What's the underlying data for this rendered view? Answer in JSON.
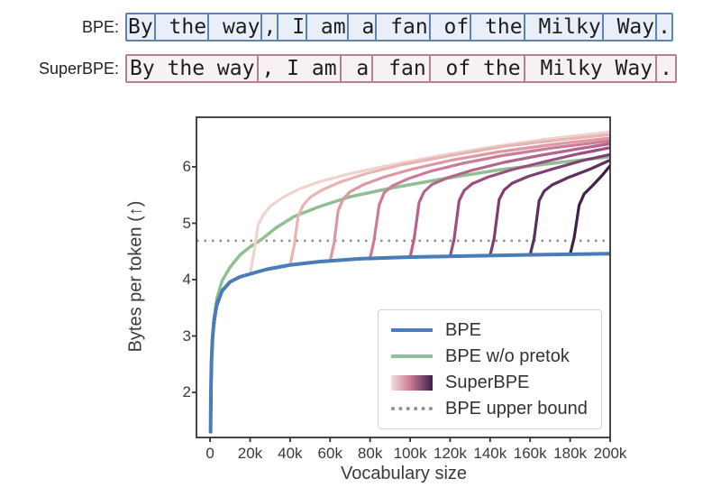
{
  "tokenization": {
    "rows": [
      {
        "label": "BPE:",
        "tokens": [
          "By",
          " the",
          " way",
          ",",
          " I",
          " am",
          " a",
          " fan",
          " of",
          " the",
          " Milky",
          " Way",
          "."
        ],
        "border_color": "#5e82b4",
        "fill_color": "#e8eff8"
      },
      {
        "label": "SuperBPE:",
        "tokens": [
          "By the way",
          ", I am",
          " a",
          " fan",
          " of the",
          " Milky Way",
          "."
        ],
        "border_color": "#b2838e",
        "fill_color": "#f8f1f2"
      }
    ]
  },
  "chart_data": {
    "type": "line",
    "xlabel": "Vocabulary size",
    "ylabel": "Bytes per token (↑)",
    "xlim": [
      -6800,
      200000
    ],
    "ylim": [
      1.2,
      6.88
    ],
    "grid": false,
    "xticks": {
      "values": [
        0,
        20000,
        40000,
        60000,
        80000,
        100000,
        120000,
        140000,
        160000,
        180000,
        200000
      ],
      "labels": [
        "0",
        "20k",
        "40k",
        "60k",
        "80k",
        "100k",
        "120k",
        "140k",
        "160k",
        "180k",
        "200k"
      ]
    },
    "yticks": {
      "values": [
        2,
        3,
        4,
        5,
        6
      ],
      "labels": [
        "2",
        "3",
        "4",
        "5",
        "6"
      ]
    },
    "hline": {
      "y": 4.69,
      "style": "dotted",
      "color": "#909090",
      "label": "BPE upper bound"
    },
    "legend": {
      "position": "lower right",
      "entries": [
        {
          "label": "BPE",
          "swatch": "line",
          "color": "#4a7db8"
        },
        {
          "label": "BPE w/o pretok",
          "swatch": "line",
          "color": "#90bf93"
        },
        {
          "label": "SuperBPE",
          "swatch": "gradient",
          "colors": [
            "#f2dfdc",
            "#cb7d97",
            "#3f2049"
          ]
        },
        {
          "label": "BPE upper bound",
          "swatch": "dotted",
          "color": "#909090"
        }
      ]
    },
    "series": [
      {
        "name": "BPE w/o pretok",
        "color": "#90bf93",
        "width": 3.5,
        "points": [
          [
            250,
            1.3
          ],
          [
            400,
            1.95
          ],
          [
            700,
            2.5
          ],
          [
            1200,
            2.95
          ],
          [
            2000,
            3.33
          ],
          [
            3500,
            3.68
          ],
          [
            6000,
            3.98
          ],
          [
            10000,
            4.22
          ],
          [
            15000,
            4.44
          ],
          [
            20000,
            4.58
          ],
          [
            26000,
            4.72
          ],
          [
            33000,
            4.92
          ],
          [
            42000,
            5.12
          ],
          [
            55000,
            5.3
          ],
          [
            70000,
            5.47
          ],
          [
            90000,
            5.62
          ],
          [
            115000,
            5.78
          ],
          [
            145000,
            5.95
          ],
          [
            175000,
            6.08
          ],
          [
            200000,
            6.18
          ]
        ]
      },
      {
        "name": "SuperBPE t=20k",
        "group": "SuperBPE",
        "transition": 20000,
        "color": "#efd3cd",
        "width": 3.2,
        "points": [
          [
            250,
            1.3
          ],
          [
            700,
            2.55
          ],
          [
            1500,
            3.1
          ],
          [
            3000,
            3.5
          ],
          [
            6000,
            3.8
          ],
          [
            10000,
            3.96
          ],
          [
            15000,
            4.05
          ],
          [
            20000,
            4.1
          ],
          [
            22000,
            4.5
          ],
          [
            24000,
            4.97
          ],
          [
            26500,
            5.14
          ],
          [
            30000,
            5.3
          ],
          [
            36000,
            5.45
          ],
          [
            44000,
            5.6
          ],
          [
            55000,
            5.74
          ],
          [
            70000,
            5.88
          ],
          [
            90000,
            6.03
          ],
          [
            115000,
            6.2
          ],
          [
            142000,
            6.36
          ],
          [
            170000,
            6.5
          ],
          [
            200000,
            6.62
          ]
        ]
      },
      {
        "name": "SuperBPE t=40k",
        "group": "SuperBPE",
        "transition": 40000,
        "color": "#e7b5b3",
        "width": 3.2,
        "points": [
          [
            250,
            1.3
          ],
          [
            700,
            2.55
          ],
          [
            1500,
            3.1
          ],
          [
            3000,
            3.5
          ],
          [
            6000,
            3.8
          ],
          [
            10000,
            3.96
          ],
          [
            15000,
            4.05
          ],
          [
            20000,
            4.1
          ],
          [
            28000,
            4.18
          ],
          [
            40000,
            4.26
          ],
          [
            42000,
            4.6
          ],
          [
            44000,
            5.12
          ],
          [
            46500,
            5.32
          ],
          [
            50000,
            5.46
          ],
          [
            56000,
            5.59
          ],
          [
            65000,
            5.73
          ],
          [
            78000,
            5.88
          ],
          [
            96000,
            6.04
          ],
          [
            120000,
            6.2
          ],
          [
            148000,
            6.37
          ],
          [
            175000,
            6.48
          ],
          [
            200000,
            6.57
          ]
        ]
      },
      {
        "name": "SuperBPE t=60k",
        "group": "SuperBPE",
        "transition": 60000,
        "color": "#dc99a4",
        "width": 3.2,
        "points": [
          [
            250,
            1.3
          ],
          [
            700,
            2.55
          ],
          [
            1500,
            3.1
          ],
          [
            3000,
            3.5
          ],
          [
            6000,
            3.8
          ],
          [
            10000,
            3.96
          ],
          [
            15000,
            4.05
          ],
          [
            20000,
            4.1
          ],
          [
            28000,
            4.18
          ],
          [
            40000,
            4.26
          ],
          [
            55000,
            4.32
          ],
          [
            60000,
            4.33
          ],
          [
            62000,
            4.65
          ],
          [
            64000,
            5.22
          ],
          [
            66500,
            5.43
          ],
          [
            70000,
            5.56
          ],
          [
            77000,
            5.69
          ],
          [
            87000,
            5.82
          ],
          [
            101000,
            5.96
          ],
          [
            121000,
            6.12
          ],
          [
            145000,
            6.27
          ],
          [
            172000,
            6.4
          ],
          [
            200000,
            6.51
          ]
        ]
      },
      {
        "name": "SuperBPE t=80k",
        "group": "SuperBPE",
        "transition": 80000,
        "color": "#cb7d97",
        "width": 3.2,
        "points": [
          [
            250,
            1.3
          ],
          [
            700,
            2.55
          ],
          [
            1500,
            3.1
          ],
          [
            3000,
            3.5
          ],
          [
            6000,
            3.8
          ],
          [
            10000,
            3.96
          ],
          [
            15000,
            4.05
          ],
          [
            20000,
            4.1
          ],
          [
            28000,
            4.18
          ],
          [
            40000,
            4.26
          ],
          [
            55000,
            4.32
          ],
          [
            75000,
            4.37
          ],
          [
            80000,
            4.38
          ],
          [
            82000,
            4.7
          ],
          [
            84500,
            5.32
          ],
          [
            87000,
            5.54
          ],
          [
            91000,
            5.66
          ],
          [
            99000,
            5.79
          ],
          [
            110000,
            5.92
          ],
          [
            126000,
            6.06
          ],
          [
            146000,
            6.2
          ],
          [
            172000,
            6.34
          ],
          [
            200000,
            6.46
          ]
        ]
      },
      {
        "name": "SuperBPE t=100k",
        "group": "SuperBPE",
        "transition": 100000,
        "color": "#b5648c",
        "width": 3.2,
        "points": [
          [
            250,
            1.3
          ],
          [
            700,
            2.55
          ],
          [
            1500,
            3.1
          ],
          [
            3000,
            3.5
          ],
          [
            6000,
            3.8
          ],
          [
            10000,
            3.96
          ],
          [
            15000,
            4.05
          ],
          [
            20000,
            4.1
          ],
          [
            28000,
            4.18
          ],
          [
            40000,
            4.26
          ],
          [
            55000,
            4.32
          ],
          [
            75000,
            4.37
          ],
          [
            100000,
            4.4
          ],
          [
            102000,
            4.72
          ],
          [
            104500,
            5.37
          ],
          [
            107000,
            5.56
          ],
          [
            111000,
            5.69
          ],
          [
            119000,
            5.81
          ],
          [
            131000,
            5.94
          ],
          [
            147000,
            6.08
          ],
          [
            166000,
            6.21
          ],
          [
            184000,
            6.32
          ],
          [
            200000,
            6.41
          ]
        ]
      },
      {
        "name": "SuperBPE t=120k",
        "group": "SuperBPE",
        "transition": 120000,
        "color": "#9b4f81",
        "width": 3.2,
        "points": [
          [
            250,
            1.3
          ],
          [
            700,
            2.55
          ],
          [
            1500,
            3.1
          ],
          [
            3000,
            3.5
          ],
          [
            6000,
            3.8
          ],
          [
            10000,
            3.96
          ],
          [
            15000,
            4.05
          ],
          [
            20000,
            4.1
          ],
          [
            28000,
            4.18
          ],
          [
            40000,
            4.26
          ],
          [
            55000,
            4.32
          ],
          [
            75000,
            4.37
          ],
          [
            100000,
            4.4
          ],
          [
            120000,
            4.41
          ],
          [
            122000,
            4.72
          ],
          [
            124500,
            5.4
          ],
          [
            127000,
            5.58
          ],
          [
            131000,
            5.7
          ],
          [
            139000,
            5.82
          ],
          [
            151000,
            5.95
          ],
          [
            167000,
            6.09
          ],
          [
            184000,
            6.23
          ],
          [
            200000,
            6.34
          ]
        ]
      },
      {
        "name": "SuperBPE t=140k",
        "group": "SuperBPE",
        "transition": 140000,
        "color": "#7d3f71",
        "width": 3.2,
        "points": [
          [
            250,
            1.3
          ],
          [
            700,
            2.55
          ],
          [
            1500,
            3.1
          ],
          [
            3000,
            3.5
          ],
          [
            6000,
            3.8
          ],
          [
            10000,
            3.96
          ],
          [
            15000,
            4.05
          ],
          [
            20000,
            4.1
          ],
          [
            28000,
            4.18
          ],
          [
            40000,
            4.26
          ],
          [
            55000,
            4.32
          ],
          [
            75000,
            4.37
          ],
          [
            100000,
            4.4
          ],
          [
            130000,
            4.42
          ],
          [
            140000,
            4.43
          ],
          [
            142000,
            4.73
          ],
          [
            144500,
            5.42
          ],
          [
            147000,
            5.59
          ],
          [
            151000,
            5.71
          ],
          [
            159000,
            5.83
          ],
          [
            171000,
            5.96
          ],
          [
            186000,
            6.11
          ],
          [
            200000,
            6.22
          ]
        ]
      },
      {
        "name": "SuperBPE t=160k",
        "group": "SuperBPE",
        "transition": 160000,
        "color": "#5d2f5e",
        "width": 3.2,
        "points": [
          [
            250,
            1.3
          ],
          [
            700,
            2.55
          ],
          [
            1500,
            3.1
          ],
          [
            3000,
            3.5
          ],
          [
            6000,
            3.8
          ],
          [
            10000,
            3.96
          ],
          [
            15000,
            4.05
          ],
          [
            20000,
            4.1
          ],
          [
            28000,
            4.18
          ],
          [
            40000,
            4.26
          ],
          [
            55000,
            4.32
          ],
          [
            75000,
            4.37
          ],
          [
            100000,
            4.4
          ],
          [
            130000,
            4.42
          ],
          [
            160000,
            4.44
          ],
          [
            162000,
            4.73
          ],
          [
            164500,
            5.4
          ],
          [
            167000,
            5.57
          ],
          [
            171000,
            5.68
          ],
          [
            179000,
            5.81
          ],
          [
            190000,
            5.96
          ],
          [
            200000,
            6.12
          ]
        ]
      },
      {
        "name": "SuperBPE t=180k",
        "group": "SuperBPE",
        "transition": 180000,
        "color": "#3f2049",
        "width": 3.2,
        "points": [
          [
            250,
            1.3
          ],
          [
            700,
            2.55
          ],
          [
            1500,
            3.1
          ],
          [
            3000,
            3.5
          ],
          [
            6000,
            3.8
          ],
          [
            10000,
            3.96
          ],
          [
            15000,
            4.05
          ],
          [
            20000,
            4.1
          ],
          [
            28000,
            4.18
          ],
          [
            40000,
            4.26
          ],
          [
            55000,
            4.32
          ],
          [
            75000,
            4.37
          ],
          [
            100000,
            4.4
          ],
          [
            130000,
            4.42
          ],
          [
            160000,
            4.44
          ],
          [
            180000,
            4.45
          ],
          [
            182000,
            4.74
          ],
          [
            184500,
            5.32
          ],
          [
            187000,
            5.52
          ],
          [
            191000,
            5.66
          ],
          [
            196000,
            5.85
          ],
          [
            200000,
            6.02
          ]
        ]
      },
      {
        "name": "BPE",
        "color": "#4a7db8",
        "width": 4,
        "points": [
          [
            250,
            1.3
          ],
          [
            400,
            2.0
          ],
          [
            700,
            2.55
          ],
          [
            1200,
            2.95
          ],
          [
            2000,
            3.28
          ],
          [
            3500,
            3.58
          ],
          [
            6000,
            3.8
          ],
          [
            10000,
            3.96
          ],
          [
            15000,
            4.05
          ],
          [
            20000,
            4.1
          ],
          [
            28000,
            4.18
          ],
          [
            40000,
            4.26
          ],
          [
            55000,
            4.32
          ],
          [
            75000,
            4.37
          ],
          [
            100000,
            4.4
          ],
          [
            130000,
            4.42
          ],
          [
            160000,
            4.44
          ],
          [
            200000,
            4.46
          ]
        ]
      }
    ]
  }
}
